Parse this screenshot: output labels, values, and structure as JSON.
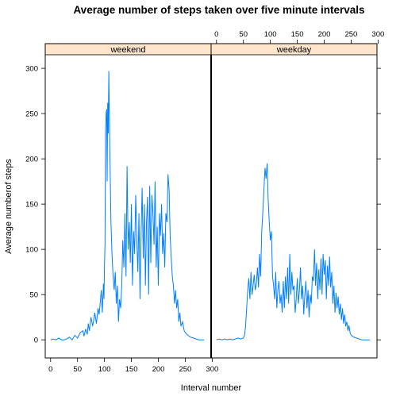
{
  "chart_data": {
    "type": "line",
    "title": "Average number of steps taken over five minute intervals",
    "xlabel": "Interval number",
    "ylabel": "Average numberof steps",
    "xlim": [
      -10,
      298
    ],
    "ylim": [
      -20,
      315
    ],
    "x_ticks": [
      0,
      50,
      100,
      150,
      200,
      250,
      300
    ],
    "x_ticks_top": [
      0,
      50,
      100,
      150,
      200,
      250,
      300
    ],
    "y_ticks": [
      0,
      50,
      100,
      150,
      200,
      250,
      300
    ],
    "line_color": "#0080ff",
    "strip_color": "#ffe5cc",
    "layout": "lattice two panels side by side",
    "panels": [
      {
        "name": "weekend",
        "x": [
          0,
          5,
          10,
          15,
          20,
          25,
          30,
          35,
          40,
          45,
          50,
          55,
          60,
          62,
          65,
          68,
          70,
          72,
          75,
          78,
          80,
          82,
          85,
          88,
          90,
          92,
          94,
          96,
          98,
          99,
          100,
          101,
          102,
          103,
          104,
          105,
          106,
          107,
          108,
          110,
          112,
          114,
          116,
          118,
          120,
          122,
          124,
          126,
          128,
          130,
          132,
          134,
          136,
          138,
          140,
          142,
          144,
          146,
          148,
          150,
          152,
          154,
          156,
          158,
          160,
          162,
          164,
          166,
          168,
          170,
          172,
          174,
          176,
          178,
          180,
          182,
          184,
          186,
          188,
          190,
          192,
          194,
          196,
          198,
          200,
          202,
          204,
          206,
          208,
          210,
          212,
          214,
          216,
          218,
          220,
          222,
          224,
          226,
          228,
          230,
          232,
          234,
          236,
          238,
          240,
          242,
          245,
          248,
          250,
          255,
          260,
          265,
          270,
          275,
          280,
          285
        ],
        "y": [
          0,
          1,
          0,
          2,
          0,
          0,
          1,
          3,
          0,
          5,
          2,
          8,
          10,
          4,
          12,
          6,
          18,
          10,
          25,
          15,
          22,
          30,
          18,
          35,
          28,
          40,
          55,
          30,
          62,
          45,
          80,
          105,
          230,
          250,
          255,
          175,
          262,
          228,
          297,
          210,
          130,
          95,
          70,
          55,
          75,
          40,
          60,
          20,
          45,
          35,
          60,
          110,
          80,
          140,
          70,
          192,
          100,
          130,
          85,
          150,
          60,
          120,
          95,
          160,
          110,
          75,
          140,
          45,
          118,
          168,
          90,
          150,
          60,
          130,
          158,
          50,
          170,
          85,
          160,
          140,
          105,
          175,
          80,
          125,
          60,
          140,
          115,
          150,
          95,
          118,
          80,
          140,
          130,
          183,
          165,
          115,
          90,
          70,
          60,
          40,
          55,
          35,
          45,
          20,
          30,
          15,
          20,
          10,
          8,
          5,
          3,
          2,
          1,
          0,
          0,
          0
        ]
      },
      {
        "name": "weekday",
        "x": [
          0,
          5,
          10,
          15,
          20,
          25,
          30,
          35,
          40,
          45,
          50,
          52,
          54,
          56,
          58,
          60,
          62,
          64,
          66,
          68,
          70,
          72,
          74,
          76,
          78,
          80,
          82,
          84,
          86,
          88,
          90,
          92,
          94,
          96,
          98,
          100,
          102,
          103,
          104,
          106,
          108,
          110,
          112,
          114,
          116,
          118,
          120,
          122,
          124,
          126,
          128,
          130,
          132,
          134,
          136,
          138,
          140,
          142,
          144,
          146,
          148,
          150,
          152,
          154,
          156,
          158,
          160,
          162,
          164,
          166,
          168,
          170,
          172,
          174,
          176,
          178,
          180,
          182,
          184,
          186,
          188,
          190,
          192,
          194,
          196,
          198,
          200,
          202,
          204,
          206,
          208,
          210,
          212,
          214,
          216,
          218,
          220,
          222,
          224,
          226,
          228,
          230,
          232,
          234,
          236,
          238,
          240,
          242,
          244,
          246,
          248,
          250,
          255,
          260,
          265,
          270,
          275,
          280,
          285
        ],
        "y": [
          0,
          1,
          0,
          1,
          0,
          1,
          0,
          1,
          2,
          1,
          2,
          5,
          15,
          35,
          55,
          68,
          45,
          75,
          50,
          60,
          72,
          55,
          62,
          80,
          58,
          95,
          70,
          120,
          140,
          165,
          190,
          178,
          195,
          155,
          130,
          110,
          120,
          95,
          70,
          60,
          45,
          75,
          35,
          55,
          65,
          40,
          50,
          30,
          65,
          35,
          70,
          45,
          80,
          40,
          95,
          50,
          75,
          55,
          60,
          30,
          45,
          68,
          40,
          55,
          80,
          45,
          60,
          28,
          50,
          65,
          35,
          55,
          25,
          50,
          40,
          70,
          65,
          100,
          60,
          85,
          45,
          78,
          55,
          90,
          50,
          95,
          72,
          88,
          45,
          82,
          60,
          92,
          58,
          75,
          40,
          60,
          30,
          52,
          35,
          48,
          28,
          40,
          22,
          35,
          18,
          28,
          15,
          20,
          10,
          16,
          8,
          5,
          3,
          2,
          1,
          0,
          0,
          0,
          0
        ]
      }
    ]
  }
}
